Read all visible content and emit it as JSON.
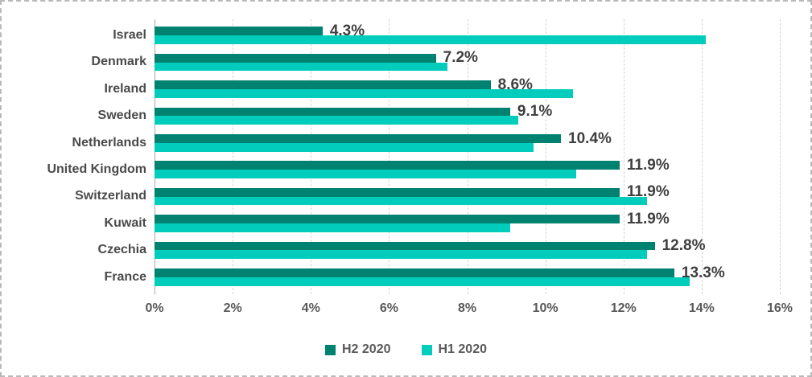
{
  "chart_data": {
    "type": "bar",
    "orientation": "horizontal",
    "title": "",
    "xlabel": "",
    "ylabel": "",
    "xlim": [
      0,
      16
    ],
    "x_ticks": [
      "0%",
      "2%",
      "4%",
      "6%",
      "8%",
      "10%",
      "12%",
      "14%",
      "16%"
    ],
    "x_tick_values": [
      0,
      2,
      4,
      6,
      8,
      10,
      12,
      14,
      16
    ],
    "grid": true,
    "legend_position": "bottom",
    "categories": [
      "Israel",
      "Denmark",
      "Ireland",
      "Sweden",
      "Netherlands",
      "United Kingdom",
      "Switzerland",
      "Kuwait",
      "Czechia",
      "France"
    ],
    "series": [
      {
        "name": "H2 2020",
        "color": "#008270",
        "values": [
          4.3,
          7.2,
          8.6,
          9.1,
          10.4,
          11.9,
          11.9,
          11.9,
          12.8,
          13.3
        ],
        "data_labels": [
          "4.3%",
          "7.2%",
          "8.6%",
          "9.1%",
          "10.4%",
          "11.9%",
          "11.9%",
          "11.9%",
          "12.8%",
          "13.3%"
        ]
      },
      {
        "name": "H1 2020",
        "color": "#02CDBC",
        "values": [
          14.1,
          7.5,
          10.7,
          9.3,
          9.7,
          10.8,
          12.6,
          9.1,
          12.6,
          13.7
        ],
        "data_labels": []
      }
    ],
    "colors": {
      "data_label_text": "#3f3f3f",
      "category_label_text": "#4a4a4a",
      "axis_tick_text": "#595959",
      "gridline": "#d4d4d4",
      "axis_line": "#a8a8a8"
    }
  }
}
